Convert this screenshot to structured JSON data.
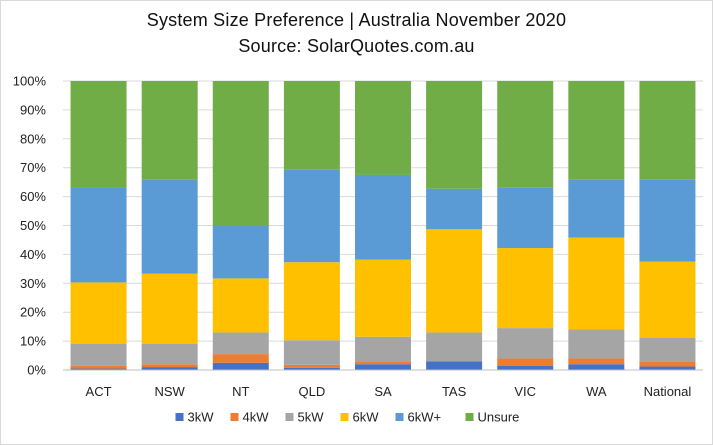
{
  "chart_data": {
    "type": "bar",
    "stacked": true,
    "percent": true,
    "title": "System Size Preference  | Australia November 2020",
    "subtitle": "Source: SolarQuotes.com.au",
    "categories": [
      "ACT",
      "NSW",
      "NT",
      "QLD",
      "SA",
      "TAS",
      "VIC",
      "WA",
      "National"
    ],
    "ylim": [
      0,
      100
    ],
    "yticks": [
      "0%",
      "10%",
      "20%",
      "30%",
      "40%",
      "50%",
      "60%",
      "70%",
      "80%",
      "90%",
      "100%"
    ],
    "grid": true,
    "legend_position": "bottom",
    "series": [
      {
        "name": "3kW",
        "color": "#4472c4",
        "values": [
          0.5,
          1.0,
          2.5,
          0.8,
          2.0,
          3.0,
          1.5,
          2.0,
          1.2
        ]
      },
      {
        "name": "4kW",
        "color": "#ed7d31",
        "values": [
          1.0,
          1.0,
          3.0,
          1.0,
          1.0,
          0.0,
          2.5,
          2.0,
          1.8
        ]
      },
      {
        "name": "5kW",
        "color": "#a5a5a5",
        "values": [
          7.5,
          7.0,
          7.5,
          8.5,
          8.5,
          10.0,
          10.5,
          10.0,
          8.2
        ]
      },
      {
        "name": "6kW",
        "color": "#ffc000",
        "values": [
          21.3,
          24.3,
          18.7,
          27.0,
          26.7,
          35.7,
          27.7,
          31.8,
          26.3
        ]
      },
      {
        "name": "6kW+",
        "color": "#5b9bd5",
        "values": [
          33.0,
          32.5,
          18.3,
          32.0,
          29.3,
          14.0,
          21.0,
          20.0,
          28.5
        ]
      },
      {
        "name": "Unsure",
        "color": "#70ad47",
        "values": [
          36.7,
          34.2,
          50.0,
          30.7,
          32.5,
          37.3,
          36.8,
          34.2,
          34.0
        ]
      }
    ]
  }
}
